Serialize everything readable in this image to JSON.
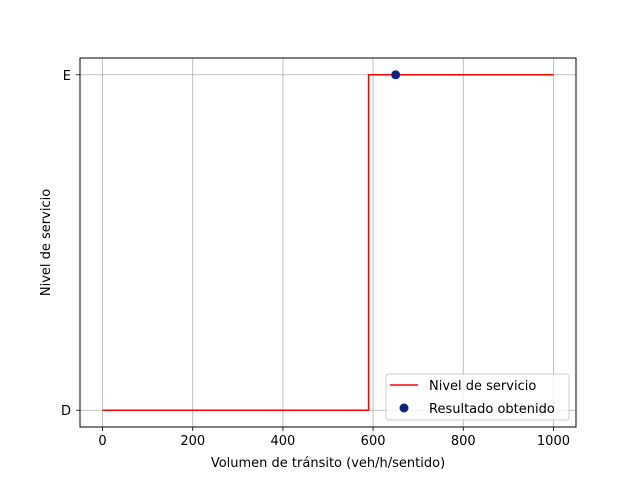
{
  "chart_data": {
    "type": "line",
    "title": "",
    "xlabel": "Volumen de tránsito (veh/h/sentido)",
    "ylabel": "Nivel de servicio",
    "xlim": [
      -50,
      1050
    ],
    "ylim": [
      -0.05,
      1.05
    ],
    "x_ticks": [
      0,
      200,
      400,
      600,
      800,
      1000
    ],
    "y_ticks": [
      {
        "value": 0,
        "label": "D"
      },
      {
        "value": 1,
        "label": "E"
      }
    ],
    "grid": true,
    "legend_position": "lower-right",
    "series": [
      {
        "name": "Nivel de servicio",
        "kind": "line",
        "color": "#ff0000",
        "points": [
          [
            0,
            0
          ],
          [
            590,
            0
          ],
          [
            590,
            1
          ],
          [
            1000,
            1
          ]
        ]
      },
      {
        "name": "Resultado obtenido",
        "kind": "scatter",
        "color": "#0d2484",
        "points": [
          [
            650,
            1
          ]
        ]
      }
    ]
  }
}
